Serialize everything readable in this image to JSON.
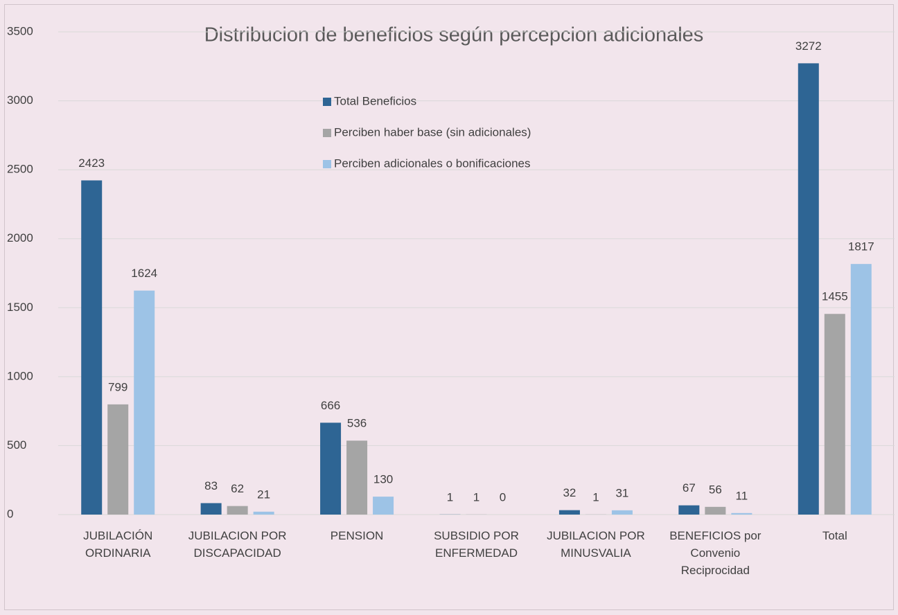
{
  "chart_data": {
    "type": "bar",
    "title": "Distribucion de beneficios según percepcion adicionales",
    "categories": [
      "JUBILACIÓN ORDINARIA",
      "JUBILACION POR DISCAPACIDAD",
      "PENSION",
      "SUBSIDIO POR ENFERMEDAD",
      "JUBILACION POR MINUSVALIA",
      "BENEFICIOS por Convenio Reciprocidad",
      "Total"
    ],
    "series": [
      {
        "name": "Total Beneficios",
        "color": "#2e6594",
        "values": [
          2423,
          83,
          666,
          1,
          32,
          67,
          3272
        ]
      },
      {
        "name": "Perciben haber base (sin adicionales)",
        "color": "#a5a5a5",
        "values": [
          799,
          62,
          536,
          1,
          1,
          56,
          1455
        ]
      },
      {
        "name": "Perciben adicionales o bonificaciones",
        "color": "#9dc3e6",
        "values": [
          1624,
          21,
          130,
          0,
          31,
          11,
          1817
        ]
      }
    ],
    "ylim": [
      0,
      3500
    ],
    "yticks": [
      0,
      500,
      1000,
      1500,
      2000,
      2500,
      3000,
      3500
    ],
    "grid": true
  }
}
